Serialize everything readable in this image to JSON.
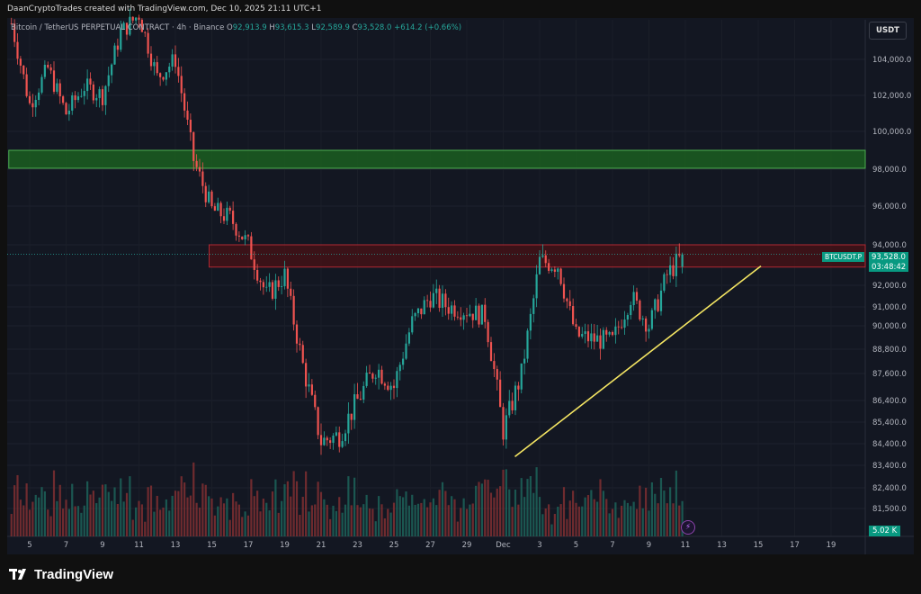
{
  "banner": {
    "text": "DaanCryptoTrades created with TradingView.com, Dec 10, 2025 21:11 UTC+1"
  },
  "legend": {
    "symbol": "Bitcoin / TetherUS PERPETUAL CONTRACT · 4h · Binance",
    "open_label": "O",
    "open": "92,913.9",
    "high_label": "H",
    "high": "93,615.3",
    "low_label": "L",
    "low": "92,589.9",
    "close_label": "C",
    "close": "93,528.0",
    "change": "+614.2 (+0.66%)"
  },
  "price_axis": {
    "currency": "USDT",
    "current_price": "93,528.0",
    "countdown": "03:48:42",
    "symbol_tag": "BTCUSDT.P",
    "volume_tag": "5.02 K"
  },
  "brand": {
    "name": "TradingView",
    "icon": "tradingview-logo-icon"
  },
  "icons": {
    "alert": "lightning-bolt-icon"
  },
  "colors": {
    "up": "#26a69a",
    "down": "#ef5350",
    "background": "#131722",
    "support_zone": "#4caf50",
    "resistance_zone": "#b22833",
    "trendline": "#f5e663"
  },
  "chart_data": {
    "type": "candlestick",
    "title": "",
    "x_tick_labels": [
      "5",
      "7",
      "9",
      "11",
      "13",
      "15",
      "17",
      "19",
      "21",
      "23",
      "25",
      "27",
      "29",
      "Dec",
      "3",
      "5",
      "7",
      "9",
      "11",
      "13",
      "15",
      "17",
      "19"
    ],
    "y_tick_labels": [
      "104,000.0",
      "102,000.0",
      "100,000.0",
      "98,000.0",
      "96,000.0",
      "94,000.0",
      "92,000.0",
      "91,000.0",
      "90,000.0",
      "88,800.0",
      "87,600.0",
      "86,400.0",
      "85,400.0",
      "84,400.0",
      "83,400.0",
      "82,400.0",
      "81,500.0"
    ],
    "y_ticks": [
      104000,
      102000,
      100000,
      98000,
      96000,
      94000,
      92000,
      91000,
      90000,
      88800,
      87600,
      86400,
      85400,
      84400,
      83400,
      82400,
      81500
    ],
    "current_price": 93528.0,
    "zones": [
      {
        "kind": "support",
        "start": "Nov 4",
        "low": 98050,
        "high": 99000
      },
      {
        "kind": "resistance",
        "start": "Nov 15",
        "low": 92900,
        "high": 94000
      }
    ],
    "trendline": {
      "from": {
        "date": "Dec 1",
        "price": 83800
      },
      "to": {
        "date": "Dec 15",
        "price": 92950
      }
    },
    "price_anchors": [
      {
        "date": "Nov 4",
        "price": 106000
      },
      {
        "date": "Nov 5",
        "price": 101500
      },
      {
        "date": "Nov 6",
        "price": 103500
      },
      {
        "date": "Nov 7",
        "price": 101000
      },
      {
        "date": "Nov 8",
        "price": 102500
      },
      {
        "date": "Nov 9",
        "price": 102000
      },
      {
        "date": "Nov 10",
        "price": 105500
      },
      {
        "date": "Nov 11",
        "price": 106500
      },
      {
        "date": "Nov 12",
        "price": 103000
      },
      {
        "date": "Nov 13",
        "price": 104000
      },
      {
        "date": "Nov 14",
        "price": 98500
      },
      {
        "date": "Nov 15",
        "price": 95800
      },
      {
        "date": "Nov 16",
        "price": 95400
      },
      {
        "date": "Nov 17",
        "price": 94000
      },
      {
        "date": "Nov 18",
        "price": 91500
      },
      {
        "date": "Nov 19",
        "price": 92500
      },
      {
        "date": "Nov 20",
        "price": 88000
      },
      {
        "date": "Nov 21",
        "price": 84500
      },
      {
        "date": "Nov 22",
        "price": 84800
      },
      {
        "date": "Nov 23",
        "price": 86400
      },
      {
        "date": "Nov 24",
        "price": 87900
      },
      {
        "date": "Nov 25",
        "price": 87000
      },
      {
        "date": "Nov 26",
        "price": 90200
      },
      {
        "date": "Nov 27",
        "price": 91500
      },
      {
        "date": "Nov 28",
        "price": 91000
      },
      {
        "date": "Nov 29",
        "price": 90800
      },
      {
        "date": "Nov 30",
        "price": 90500
      },
      {
        "date": "Dec 1",
        "price": 85000
      },
      {
        "date": "Dec 2",
        "price": 87600
      },
      {
        "date": "Dec 3",
        "price": 93200
      },
      {
        "date": "Dec 4",
        "price": 93000
      },
      {
        "date": "Dec 5",
        "price": 89500
      },
      {
        "date": "Dec 6",
        "price": 89300
      },
      {
        "date": "Dec 7",
        "price": 89200
      },
      {
        "date": "Dec 8",
        "price": 91500
      },
      {
        "date": "Dec 9",
        "price": 90000
      },
      {
        "date": "Dec 10",
        "price": 92500
      },
      {
        "date": "Dec 10 21:00",
        "price": 93528
      }
    ]
  }
}
